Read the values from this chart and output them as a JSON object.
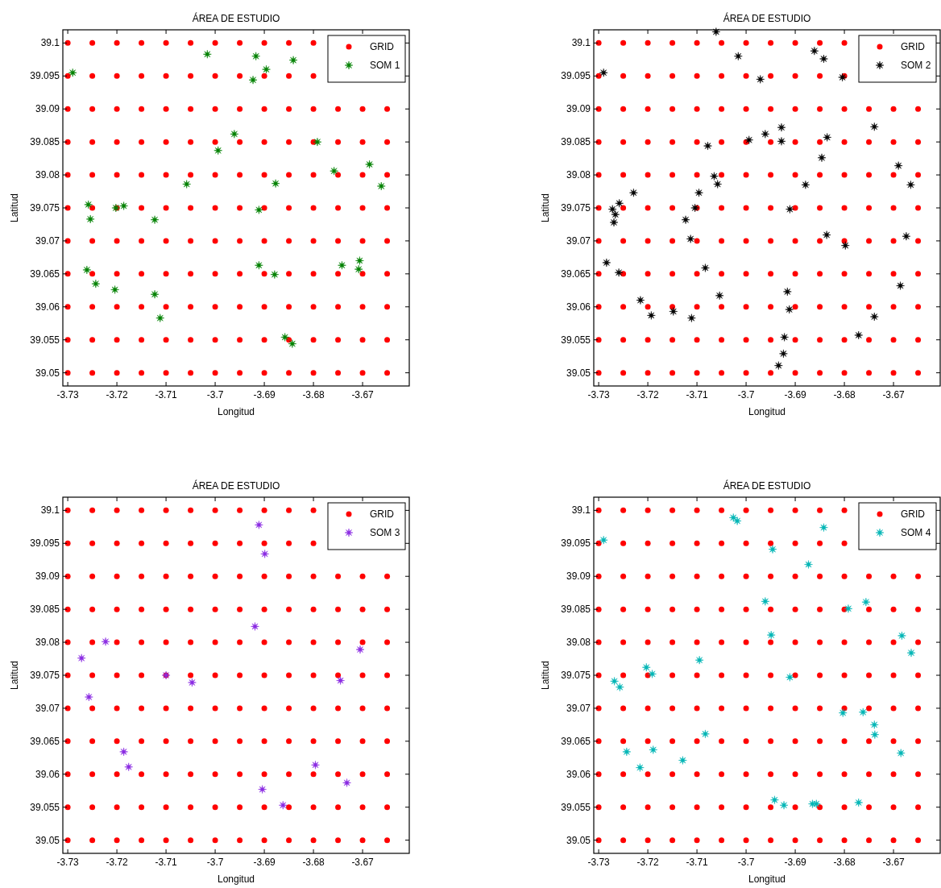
{
  "chart_data": [
    {
      "type": "scatter",
      "title": "ÁREA DE ESTUDIO",
      "xlabel": "Longitud",
      "ylabel": "Latitud",
      "xlim": [
        -3.731,
        -3.6605
      ],
      "ylim": [
        39.048,
        39.102
      ],
      "xticks": [
        -3.73,
        -3.72,
        -3.71,
        -3.7,
        -3.69,
        -3.68,
        -3.67
      ],
      "yticks": [
        39.05,
        39.055,
        39.06,
        39.065,
        39.07,
        39.075,
        39.08,
        39.085,
        39.09,
        39.095,
        39.1
      ],
      "legend": "top right",
      "grid": false,
      "series": [
        {
          "name": "GRID",
          "color": "#ff0000",
          "marker": "circle",
          "x": [
            -3.73,
            -3.725,
            -3.72,
            -3.715,
            -3.71,
            -3.705,
            -3.7,
            -3.695,
            -3.69,
            -3.685,
            -3.68,
            -3.675,
            -3.67,
            -3.665,
            -3.73,
            -3.725,
            -3.72,
            -3.715,
            -3.71,
            -3.705,
            -3.7,
            -3.695,
            -3.69,
            -3.685,
            -3.68,
            -3.675,
            -3.67,
            -3.665,
            -3.73,
            -3.725,
            -3.72,
            -3.715,
            -3.71,
            -3.705,
            -3.7,
            -3.695,
            -3.69,
            -3.685,
            -3.68,
            -3.675,
            -3.67,
            -3.665,
            -3.73,
            -3.725,
            -3.72,
            -3.715,
            -3.71,
            -3.705,
            -3.7,
            -3.695,
            -3.69,
            -3.685,
            -3.68,
            -3.675,
            -3.67,
            -3.665,
            -3.73,
            -3.725,
            -3.72,
            -3.715,
            -3.71,
            -3.705,
            -3.7,
            -3.695,
            -3.69,
            -3.685,
            -3.68,
            -3.675,
            -3.67,
            -3.665,
            -3.73,
            -3.725,
            -3.72,
            -3.715,
            -3.71,
            -3.705,
            -3.7,
            -3.695,
            -3.69,
            -3.685,
            -3.68,
            -3.675,
            -3.67,
            -3.665,
            -3.73,
            -3.725,
            -3.72,
            -3.715,
            -3.71,
            -3.705,
            -3.7,
            -3.695,
            -3.69,
            -3.685,
            -3.68,
            -3.675,
            -3.67,
            -3.665,
            -3.73,
            -3.725,
            -3.72,
            -3.715,
            -3.71,
            -3.705,
            -3.7,
            -3.695,
            -3.69,
            -3.685,
            -3.68,
            -3.675,
            -3.67,
            -3.665,
            -3.73,
            -3.725,
            -3.72,
            -3.715,
            -3.71,
            -3.705,
            -3.7,
            -3.695,
            -3.69,
            -3.685,
            -3.68,
            -3.675,
            -3.67,
            -3.665,
            -3.73,
            -3.725,
            -3.72,
            -3.715,
            -3.71,
            -3.705,
            -3.7,
            -3.695,
            -3.69,
            -3.685,
            -3.68,
            -3.73,
            -3.725,
            -3.72,
            -3.715,
            -3.71,
            -3.705,
            -3.7,
            -3.695,
            -3.69,
            -3.685,
            -3.68
          ],
          "values": [
            39.05,
            39.05,
            39.05,
            39.05,
            39.05,
            39.05,
            39.05,
            39.05,
            39.05,
            39.05,
            39.05,
            39.05,
            39.05,
            39.05,
            39.055,
            39.055,
            39.055,
            39.055,
            39.055,
            39.055,
            39.055,
            39.055,
            39.055,
            39.055,
            39.055,
            39.055,
            39.055,
            39.055,
            39.06,
            39.06,
            39.06,
            39.06,
            39.06,
            39.06,
            39.06,
            39.06,
            39.06,
            39.06,
            39.06,
            39.06,
            39.06,
            39.06,
            39.065,
            39.065,
            39.065,
            39.065,
            39.065,
            39.065,
            39.065,
            39.065,
            39.065,
            39.065,
            39.065,
            39.065,
            39.065,
            39.065,
            39.07,
            39.07,
            39.07,
            39.07,
            39.07,
            39.07,
            39.07,
            39.07,
            39.07,
            39.07,
            39.07,
            39.07,
            39.07,
            39.07,
            39.075,
            39.075,
            39.075,
            39.075,
            39.075,
            39.075,
            39.075,
            39.075,
            39.075,
            39.075,
            39.075,
            39.075,
            39.075,
            39.075,
            39.08,
            39.08,
            39.08,
            39.08,
            39.08,
            39.08,
            39.08,
            39.08,
            39.08,
            39.08,
            39.08,
            39.08,
            39.08,
            39.08,
            39.085,
            39.085,
            39.085,
            39.085,
            39.085,
            39.085,
            39.085,
            39.085,
            39.085,
            39.085,
            39.085,
            39.085,
            39.085,
            39.085,
            39.09,
            39.09,
            39.09,
            39.09,
            39.09,
            39.09,
            39.09,
            39.09,
            39.09,
            39.09,
            39.09,
            39.09,
            39.09,
            39.09,
            39.095,
            39.095,
            39.095,
            39.095,
            39.095,
            39.095,
            39.095,
            39.095,
            39.095,
            39.095,
            39.095,
            39.1,
            39.1,
            39.1,
            39.1,
            39.1,
            39.1,
            39.1,
            39.1,
            39.1,
            39.1,
            39.1
          ]
        },
        {
          "name": "SOM 1",
          "color": "#008000",
          "marker": "star",
          "x": [
            -3.729,
            -3.7016,
            -3.6917,
            -3.6896,
            -3.6923,
            -3.6841,
            -3.6961,
            -3.6994,
            -3.6792,
            -3.6758,
            -3.6686,
            -3.6662,
            -3.7058,
            -3.6877,
            -3.6911,
            -3.7258,
            -3.7254,
            -3.7202,
            -3.7186,
            -3.7123,
            -3.7261,
            -3.7243,
            -3.7204,
            -3.7123,
            -3.7112,
            -3.6911,
            -3.6879,
            -3.6742,
            -3.6706,
            -3.6708,
            -3.6858,
            -3.6843
          ],
          "values": [
            39.0955,
            39.0983,
            39.098,
            39.096,
            39.0944,
            39.0974,
            39.0862,
            39.0837,
            39.085,
            39.0806,
            39.0816,
            39.0783,
            39.0786,
            39.0787,
            39.0747,
            39.0755,
            39.0733,
            39.075,
            39.0753,
            39.0732,
            39.0656,
            39.0635,
            39.0626,
            39.0619,
            39.0583,
            39.0663,
            39.0649,
            39.0663,
            39.067,
            39.0657,
            39.0554,
            39.0544
          ]
        }
      ]
    },
    {
      "type": "scatter",
      "title": "ÁREA DE ESTUDIO",
      "xlabel": "Longitud",
      "ylabel": "Latitud",
      "xlim": [
        -3.731,
        -3.6605
      ],
      "ylim": [
        39.048,
        39.102
      ],
      "xticks": [
        -3.73,
        -3.72,
        -3.71,
        -3.7,
        -3.69,
        -3.68,
        -3.67
      ],
      "yticks": [
        39.05,
        39.055,
        39.06,
        39.065,
        39.07,
        39.075,
        39.08,
        39.085,
        39.09,
        39.095,
        39.1
      ],
      "legend": "top right",
      "grid": false,
      "series": [
        {
          "name": "GRID",
          "color": "#ff0000",
          "marker": "circle",
          "x": [
            -3.73,
            -3.725,
            -3.72,
            -3.715,
            -3.71,
            -3.705,
            -3.7,
            -3.695,
            -3.69,
            -3.685,
            -3.68,
            -3.675,
            -3.67,
            -3.665,
            -3.73,
            -3.725,
            -3.72,
            -3.715,
            -3.71,
            -3.705,
            -3.7,
            -3.695,
            -3.69,
            -3.685,
            -3.68,
            -3.675,
            -3.67,
            -3.665,
            -3.73,
            -3.725,
            -3.72,
            -3.715,
            -3.71,
            -3.705,
            -3.7,
            -3.695,
            -3.69,
            -3.685,
            -3.68,
            -3.675,
            -3.67,
            -3.665,
            -3.73,
            -3.725,
            -3.72,
            -3.715,
            -3.71,
            -3.705,
            -3.7,
            -3.695,
            -3.69,
            -3.685,
            -3.68,
            -3.675,
            -3.67,
            -3.665,
            -3.73,
            -3.725,
            -3.72,
            -3.715,
            -3.71,
            -3.705,
            -3.7,
            -3.695,
            -3.69,
            -3.685,
            -3.68,
            -3.675,
            -3.67,
            -3.665,
            -3.73,
            -3.725,
            -3.72,
            -3.715,
            -3.71,
            -3.705,
            -3.7,
            -3.695,
            -3.69,
            -3.685,
            -3.68,
            -3.675,
            -3.67,
            -3.665,
            -3.73,
            -3.725,
            -3.72,
            -3.715,
            -3.71,
            -3.705,
            -3.7,
            -3.695,
            -3.69,
            -3.685,
            -3.68,
            -3.675,
            -3.67,
            -3.665,
            -3.73,
            -3.725,
            -3.72,
            -3.715,
            -3.71,
            -3.705,
            -3.7,
            -3.695,
            -3.69,
            -3.685,
            -3.68,
            -3.675,
            -3.67,
            -3.665,
            -3.73,
            -3.725,
            -3.72,
            -3.715,
            -3.71,
            -3.705,
            -3.7,
            -3.695,
            -3.69,
            -3.685,
            -3.68,
            -3.675,
            -3.67,
            -3.665,
            -3.73,
            -3.725,
            -3.72,
            -3.715,
            -3.71,
            -3.705,
            -3.7,
            -3.695,
            -3.69,
            -3.685,
            -3.68,
            -3.73,
            -3.725,
            -3.72,
            -3.715,
            -3.71,
            -3.705,
            -3.7,
            -3.695,
            -3.69,
            -3.685,
            -3.68
          ],
          "values": [
            39.05,
            39.05,
            39.05,
            39.05,
            39.05,
            39.05,
            39.05,
            39.05,
            39.05,
            39.05,
            39.05,
            39.05,
            39.05,
            39.05,
            39.055,
            39.055,
            39.055,
            39.055,
            39.055,
            39.055,
            39.055,
            39.055,
            39.055,
            39.055,
            39.055,
            39.055,
            39.055,
            39.055,
            39.06,
            39.06,
            39.06,
            39.06,
            39.06,
            39.06,
            39.06,
            39.06,
            39.06,
            39.06,
            39.06,
            39.06,
            39.06,
            39.06,
            39.065,
            39.065,
            39.065,
            39.065,
            39.065,
            39.065,
            39.065,
            39.065,
            39.065,
            39.065,
            39.065,
            39.065,
            39.065,
            39.065,
            39.07,
            39.07,
            39.07,
            39.07,
            39.07,
            39.07,
            39.07,
            39.07,
            39.07,
            39.07,
            39.07,
            39.07,
            39.07,
            39.07,
            39.075,
            39.075,
            39.075,
            39.075,
            39.075,
            39.075,
            39.075,
            39.075,
            39.075,
            39.075,
            39.075,
            39.075,
            39.075,
            39.075,
            39.08,
            39.08,
            39.08,
            39.08,
            39.08,
            39.08,
            39.08,
            39.08,
            39.08,
            39.08,
            39.08,
            39.08,
            39.08,
            39.08,
            39.085,
            39.085,
            39.085,
            39.085,
            39.085,
            39.085,
            39.085,
            39.085,
            39.085,
            39.085,
            39.085,
            39.085,
            39.085,
            39.085,
            39.09,
            39.09,
            39.09,
            39.09,
            39.09,
            39.09,
            39.09,
            39.09,
            39.09,
            39.09,
            39.09,
            39.09,
            39.09,
            39.09,
            39.095,
            39.095,
            39.095,
            39.095,
            39.095,
            39.095,
            39.095,
            39.095,
            39.095,
            39.095,
            39.095,
            39.1,
            39.1,
            39.1,
            39.1,
            39.1,
            39.1,
            39.1,
            39.1,
            39.1,
            39.1,
            39.1
          ]
        },
        {
          "name": "SOM 2",
          "color": "#000000",
          "marker": "star",
          "x": [
            -3.729,
            -3.7061,
            -3.7016,
            -3.6971,
            -3.6861,
            -3.6842,
            -3.6804,
            -3.6739,
            -3.6928,
            -3.6928,
            -3.6961,
            -3.6994,
            -3.6835,
            -3.6846,
            -3.7078,
            -3.7065,
            -3.7058,
            -3.7096,
            -3.7104,
            -3.7123,
            -3.7113,
            -3.7229,
            -3.7258,
            -3.7272,
            -3.7266,
            -3.7269,
            -3.7284,
            -3.7259,
            -3.7215,
            -3.7193,
            -3.7148,
            -3.7111,
            -3.7083,
            -3.7054,
            -3.6911,
            -3.6879,
            -3.6836,
            -3.6798,
            -3.669,
            -3.6665,
            -3.6674,
            -3.6686,
            -3.6739,
            -3.6771,
            -3.6916,
            -3.6912,
            -3.6922,
            -3.6924,
            -3.6934
          ],
          "values": [
            39.0955,
            39.1017,
            39.098,
            39.0945,
            39.0988,
            39.0976,
            39.0948,
            39.0873,
            39.0872,
            39.0851,
            39.0862,
            39.0853,
            39.0857,
            39.0826,
            39.0844,
            39.0798,
            39.0786,
            39.0773,
            39.075,
            39.0732,
            39.0703,
            39.0773,
            39.0757,
            39.0748,
            39.074,
            39.0728,
            39.0667,
            39.0652,
            39.061,
            39.0587,
            39.0593,
            39.0583,
            39.0659,
            39.0617,
            39.0748,
            39.0785,
            39.0709,
            39.0693,
            39.0814,
            39.0785,
            39.0707,
            39.0632,
            39.0585,
            39.0557,
            39.0623,
            39.0596,
            39.0554,
            39.0529,
            39.0511
          ]
        }
      ]
    },
    {
      "type": "scatter",
      "title": "ÁREA DE ESTUDIO",
      "xlabel": "Longitud",
      "ylabel": "Latitud",
      "xlim": [
        -3.731,
        -3.6605
      ],
      "ylim": [
        39.048,
        39.102
      ],
      "xticks": [
        -3.73,
        -3.72,
        -3.71,
        -3.7,
        -3.69,
        -3.68,
        -3.67
      ],
      "yticks": [
        39.05,
        39.055,
        39.06,
        39.065,
        39.07,
        39.075,
        39.08,
        39.085,
        39.09,
        39.095,
        39.1
      ],
      "legend": "top right",
      "grid": false,
      "series": [
        {
          "name": "GRID",
          "color": "#ff0000",
          "marker": "circle",
          "x": [
            -3.73,
            -3.725,
            -3.72,
            -3.715,
            -3.71,
            -3.705,
            -3.7,
            -3.695,
            -3.69,
            -3.685,
            -3.68,
            -3.675,
            -3.67,
            -3.665,
            -3.73,
            -3.725,
            -3.72,
            -3.715,
            -3.71,
            -3.705,
            -3.7,
            -3.695,
            -3.69,
            -3.685,
            -3.68,
            -3.675,
            -3.67,
            -3.665,
            -3.73,
            -3.725,
            -3.72,
            -3.715,
            -3.71,
            -3.705,
            -3.7,
            -3.695,
            -3.69,
            -3.685,
            -3.68,
            -3.675,
            -3.67,
            -3.665,
            -3.73,
            -3.725,
            -3.72,
            -3.715,
            -3.71,
            -3.705,
            -3.7,
            -3.695,
            -3.69,
            -3.685,
            -3.68,
            -3.675,
            -3.67,
            -3.665,
            -3.73,
            -3.725,
            -3.72,
            -3.715,
            -3.71,
            -3.705,
            -3.7,
            -3.695,
            -3.69,
            -3.685,
            -3.68,
            -3.675,
            -3.67,
            -3.665,
            -3.73,
            -3.725,
            -3.72,
            -3.715,
            -3.71,
            -3.705,
            -3.7,
            -3.695,
            -3.69,
            -3.685,
            -3.68,
            -3.675,
            -3.67,
            -3.665,
            -3.73,
            -3.725,
            -3.72,
            -3.715,
            -3.71,
            -3.705,
            -3.7,
            -3.695,
            -3.69,
            -3.685,
            -3.68,
            -3.675,
            -3.67,
            -3.665,
            -3.73,
            -3.725,
            -3.72,
            -3.715,
            -3.71,
            -3.705,
            -3.7,
            -3.695,
            -3.69,
            -3.685,
            -3.68,
            -3.675,
            -3.67,
            -3.665,
            -3.73,
            -3.725,
            -3.72,
            -3.715,
            -3.71,
            -3.705,
            -3.7,
            -3.695,
            -3.69,
            -3.685,
            -3.68,
            -3.675,
            -3.67,
            -3.665,
            -3.73,
            -3.725,
            -3.72,
            -3.715,
            -3.71,
            -3.705,
            -3.7,
            -3.695,
            -3.69,
            -3.685,
            -3.68,
            -3.73,
            -3.725,
            -3.72,
            -3.715,
            -3.71,
            -3.705,
            -3.7,
            -3.695,
            -3.69,
            -3.685,
            -3.68
          ],
          "values": [
            39.05,
            39.05,
            39.05,
            39.05,
            39.05,
            39.05,
            39.05,
            39.05,
            39.05,
            39.05,
            39.05,
            39.05,
            39.05,
            39.05,
            39.055,
            39.055,
            39.055,
            39.055,
            39.055,
            39.055,
            39.055,
            39.055,
            39.055,
            39.055,
            39.055,
            39.055,
            39.055,
            39.055,
            39.06,
            39.06,
            39.06,
            39.06,
            39.06,
            39.06,
            39.06,
            39.06,
            39.06,
            39.06,
            39.06,
            39.06,
            39.06,
            39.06,
            39.065,
            39.065,
            39.065,
            39.065,
            39.065,
            39.065,
            39.065,
            39.065,
            39.065,
            39.065,
            39.065,
            39.065,
            39.065,
            39.065,
            39.07,
            39.07,
            39.07,
            39.07,
            39.07,
            39.07,
            39.07,
            39.07,
            39.07,
            39.07,
            39.07,
            39.07,
            39.07,
            39.07,
            39.075,
            39.075,
            39.075,
            39.075,
            39.075,
            39.075,
            39.075,
            39.075,
            39.075,
            39.075,
            39.075,
            39.075,
            39.075,
            39.075,
            39.08,
            39.08,
            39.08,
            39.08,
            39.08,
            39.08,
            39.08,
            39.08,
            39.08,
            39.08,
            39.08,
            39.08,
            39.08,
            39.08,
            39.085,
            39.085,
            39.085,
            39.085,
            39.085,
            39.085,
            39.085,
            39.085,
            39.085,
            39.085,
            39.085,
            39.085,
            39.085,
            39.085,
            39.09,
            39.09,
            39.09,
            39.09,
            39.09,
            39.09,
            39.09,
            39.09,
            39.09,
            39.09,
            39.09,
            39.09,
            39.09,
            39.09,
            39.095,
            39.095,
            39.095,
            39.095,
            39.095,
            39.095,
            39.095,
            39.095,
            39.095,
            39.095,
            39.095,
            39.1,
            39.1,
            39.1,
            39.1,
            39.1,
            39.1,
            39.1,
            39.1,
            39.1,
            39.1,
            39.1
          ]
        },
        {
          "name": "SOM 3",
          "color": "#8a2be2",
          "marker": "star",
          "x": [
            -3.6911,
            -3.6899,
            -3.6919,
            -3.7223,
            -3.7272,
            -3.7257,
            -3.71,
            -3.7047,
            -3.6705,
            -3.6745,
            -3.7186,
            -3.7176,
            -3.6796,
            -3.6732,
            -3.6904,
            -3.6862
          ],
          "values": [
            39.0978,
            39.0934,
            39.0824,
            39.0801,
            39.0776,
            39.0717,
            39.075,
            39.0739,
            39.0789,
            39.0742,
            39.0634,
            39.0611,
            39.0614,
            39.0587,
            39.0577,
            39.0553
          ]
        }
      ]
    },
    {
      "type": "scatter",
      "title": "ÁREA DE ESTUDIO",
      "xlabel": "Longitud",
      "ylabel": "Latitud",
      "xlim": [
        -3.731,
        -3.6605
      ],
      "ylim": [
        39.048,
        39.102
      ],
      "xticks": [
        -3.73,
        -3.72,
        -3.71,
        -3.7,
        -3.69,
        -3.68,
        -3.67
      ],
      "yticks": [
        39.05,
        39.055,
        39.06,
        39.065,
        39.07,
        39.075,
        39.08,
        39.085,
        39.09,
        39.095,
        39.1
      ],
      "legend": "top right",
      "grid": false,
      "series": [
        {
          "name": "GRID",
          "color": "#ff0000",
          "marker": "circle",
          "x": [
            -3.73,
            -3.725,
            -3.72,
            -3.715,
            -3.71,
            -3.705,
            -3.7,
            -3.695,
            -3.69,
            -3.685,
            -3.68,
            -3.675,
            -3.67,
            -3.665,
            -3.73,
            -3.725,
            -3.72,
            -3.715,
            -3.71,
            -3.705,
            -3.7,
            -3.695,
            -3.69,
            -3.685,
            -3.68,
            -3.675,
            -3.67,
            -3.665,
            -3.73,
            -3.725,
            -3.72,
            -3.715,
            -3.71,
            -3.705,
            -3.7,
            -3.695,
            -3.69,
            -3.685,
            -3.68,
            -3.675,
            -3.67,
            -3.665,
            -3.73,
            -3.725,
            -3.72,
            -3.715,
            -3.71,
            -3.705,
            -3.7,
            -3.695,
            -3.69,
            -3.685,
            -3.68,
            -3.675,
            -3.67,
            -3.665,
            -3.73,
            -3.725,
            -3.72,
            -3.715,
            -3.71,
            -3.705,
            -3.7,
            -3.695,
            -3.69,
            -3.685,
            -3.68,
            -3.675,
            -3.67,
            -3.665,
            -3.73,
            -3.725,
            -3.72,
            -3.715,
            -3.71,
            -3.705,
            -3.7,
            -3.695,
            -3.69,
            -3.685,
            -3.68,
            -3.675,
            -3.67,
            -3.665,
            -3.73,
            -3.725,
            -3.72,
            -3.715,
            -3.71,
            -3.705,
            -3.7,
            -3.695,
            -3.69,
            -3.685,
            -3.68,
            -3.675,
            -3.67,
            -3.665,
            -3.73,
            -3.725,
            -3.72,
            -3.715,
            -3.71,
            -3.705,
            -3.7,
            -3.695,
            -3.69,
            -3.685,
            -3.68,
            -3.675,
            -3.67,
            -3.665,
            -3.73,
            -3.725,
            -3.72,
            -3.715,
            -3.71,
            -3.705,
            -3.7,
            -3.695,
            -3.69,
            -3.685,
            -3.68,
            -3.675,
            -3.67,
            -3.665,
            -3.73,
            -3.725,
            -3.72,
            -3.715,
            -3.71,
            -3.705,
            -3.7,
            -3.695,
            -3.69,
            -3.685,
            -3.68,
            -3.73,
            -3.725,
            -3.72,
            -3.715,
            -3.71,
            -3.705,
            -3.7,
            -3.695,
            -3.69,
            -3.685,
            -3.68
          ],
          "values": [
            39.05,
            39.05,
            39.05,
            39.05,
            39.05,
            39.05,
            39.05,
            39.05,
            39.05,
            39.05,
            39.05,
            39.05,
            39.05,
            39.05,
            39.055,
            39.055,
            39.055,
            39.055,
            39.055,
            39.055,
            39.055,
            39.055,
            39.055,
            39.055,
            39.055,
            39.055,
            39.055,
            39.055,
            39.06,
            39.06,
            39.06,
            39.06,
            39.06,
            39.06,
            39.06,
            39.06,
            39.06,
            39.06,
            39.06,
            39.06,
            39.06,
            39.06,
            39.065,
            39.065,
            39.065,
            39.065,
            39.065,
            39.065,
            39.065,
            39.065,
            39.065,
            39.065,
            39.065,
            39.065,
            39.065,
            39.065,
            39.07,
            39.07,
            39.07,
            39.07,
            39.07,
            39.07,
            39.07,
            39.07,
            39.07,
            39.07,
            39.07,
            39.07,
            39.07,
            39.07,
            39.075,
            39.075,
            39.075,
            39.075,
            39.075,
            39.075,
            39.075,
            39.075,
            39.075,
            39.075,
            39.075,
            39.075,
            39.075,
            39.075,
            39.08,
            39.08,
            39.08,
            39.08,
            39.08,
            39.08,
            39.08,
            39.08,
            39.08,
            39.08,
            39.08,
            39.08,
            39.08,
            39.08,
            39.085,
            39.085,
            39.085,
            39.085,
            39.085,
            39.085,
            39.085,
            39.085,
            39.085,
            39.085,
            39.085,
            39.085,
            39.085,
            39.085,
            39.09,
            39.09,
            39.09,
            39.09,
            39.09,
            39.09,
            39.09,
            39.09,
            39.09,
            39.09,
            39.09,
            39.09,
            39.09,
            39.09,
            39.095,
            39.095,
            39.095,
            39.095,
            39.095,
            39.095,
            39.095,
            39.095,
            39.095,
            39.095,
            39.095,
            39.1,
            39.1,
            39.1,
            39.1,
            39.1,
            39.1,
            39.1,
            39.1,
            39.1,
            39.1,
            39.1
          ]
        },
        {
          "name": "SOM 4",
          "color": "#00b5b5",
          "marker": "star",
          "x": [
            -3.729,
            -3.7026,
            -3.7018,
            -3.6842,
            -3.6946,
            -3.6873,
            -3.6961,
            -3.6792,
            -3.6756,
            -3.6949,
            -3.6683,
            -3.6664,
            -3.7095,
            -3.7203,
            -3.7191,
            -3.7268,
            -3.7257,
            -3.6911,
            -3.6803,
            -3.6762,
            -3.6739,
            -3.6738,
            -3.7083,
            -3.7243,
            -3.7189,
            -3.7129,
            -3.7216,
            -3.6685,
            -3.6942,
            -3.6923,
            -3.6865,
            -3.6857,
            -3.6771
          ],
          "values": [
            39.0955,
            39.0989,
            39.0984,
            39.0974,
            39.0941,
            39.0918,
            39.0862,
            39.0851,
            39.0861,
            39.0811,
            39.081,
            39.0784,
            39.0773,
            39.0762,
            39.0752,
            39.0741,
            39.0732,
            39.0747,
            39.0693,
            39.0694,
            39.0675,
            39.066,
            39.0661,
            39.0634,
            39.0637,
            39.0621,
            39.061,
            39.0632,
            39.0561,
            39.0553,
            39.0555,
            39.0555,
            39.0557
          ]
        }
      ]
    }
  ]
}
